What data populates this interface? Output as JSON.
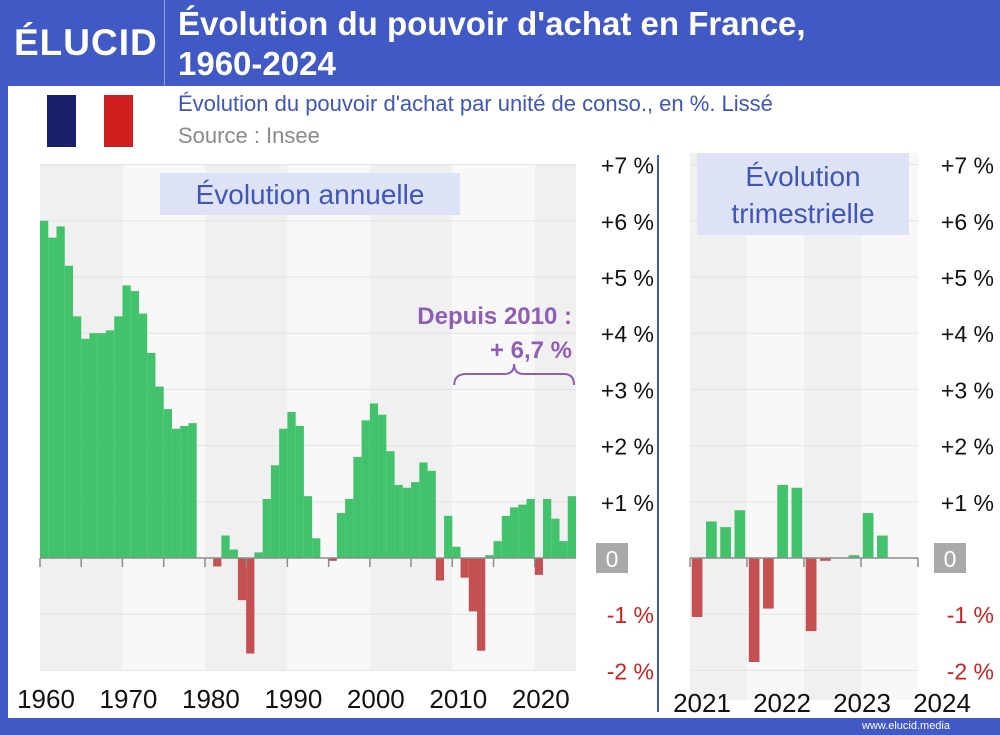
{
  "header": {
    "logo": "ÉLUCID",
    "title_line1": "Évolution du pouvoir d'achat en France,",
    "title_line2": "1960-2024"
  },
  "subtitle": "Évolution du pouvoir d'achat par unité de conso., en %. Lissé",
  "source": "Source : Insee",
  "footer": {
    "site": "www.elucid.media"
  },
  "colors": {
    "positive": "#41c26b",
    "negative": "#c55052",
    "accent": "#3f56b8",
    "annotation": "#8e5fb5",
    "flag_blue": "#19216b",
    "flag_red": "#d01f1f"
  },
  "chart_data": [
    {
      "type": "bar",
      "title": "Évolution annuelle",
      "x": [
        1960,
        1961,
        1962,
        1963,
        1964,
        1965,
        1966,
        1967,
        1968,
        1969,
        1970,
        1971,
        1972,
        1973,
        1974,
        1975,
        1976,
        1977,
        1978,
        1979,
        1980,
        1981,
        1982,
        1983,
        1984,
        1985,
        1986,
        1987,
        1988,
        1989,
        1990,
        1991,
        1992,
        1993,
        1994,
        1995,
        1996,
        1997,
        1998,
        1999,
        2000,
        2001,
        2002,
        2003,
        2004,
        2005,
        2006,
        2007,
        2008,
        2009,
        2010,
        2011,
        2012,
        2013,
        2014,
        2015,
        2016,
        2017,
        2018,
        2019,
        2020,
        2021,
        2022,
        2023,
        2024
      ],
      "values": [
        6.0,
        5.7,
        5.9,
        5.2,
        4.3,
        3.9,
        4.0,
        4.0,
        4.05,
        4.3,
        4.85,
        4.75,
        4.35,
        3.65,
        3.05,
        2.65,
        2.3,
        2.35,
        2.4,
        0,
        0,
        -0.15,
        0.4,
        0.15,
        -0.75,
        -1.7,
        0.1,
        1.05,
        1.65,
        2.3,
        2.6,
        2.35,
        1.1,
        0.35,
        0,
        -0.05,
        0.8,
        1.05,
        1.8,
        2.45,
        2.75,
        2.55,
        1.9,
        1.3,
        1.25,
        1.35,
        1.7,
        1.55,
        -0.4,
        0.75,
        0.2,
        -0.35,
        -0.95,
        -1.65,
        0.05,
        0.3,
        0.75,
        0.9,
        0.95,
        1.05,
        -0.3,
        1.05,
        0.7,
        0.3,
        1.1
      ],
      "xticks": [
        "1960",
        "1970",
        "1980",
        "1990",
        "2000",
        "2010",
        "2020"
      ],
      "yticks": [
        "+7 %",
        "+6 %",
        "+5 %",
        "+4 %",
        "+3 %",
        "+2 %",
        "+1 %",
        "0",
        "-1 %",
        "-2 %"
      ],
      "ylim": [
        -2,
        7
      ],
      "annotation_line1": "Depuis 2010 :",
      "annotation_line2": "+ 6,7 %"
    },
    {
      "type": "bar",
      "title_line1": "Évolution",
      "title_line2": "trimestrielle",
      "x": [
        "2021-T1",
        "2021-T2",
        "2021-T3",
        "2021-T4",
        "2022-T1",
        "2022-T2",
        "2022-T3",
        "2022-T4",
        "2023-T1",
        "2023-T2",
        "2023-T3",
        "2023-T4",
        "2024-T1",
        "2024-T2",
        "2024-T3",
        "2024-T4"
      ],
      "values": [
        -1.05,
        0.65,
        0.55,
        0.85,
        -1.85,
        -0.9,
        1.3,
        1.25,
        -1.3,
        -0.05,
        0,
        0.05,
        0.8,
        0.4,
        0,
        0
      ],
      "xticks": [
        "2021",
        "2022",
        "2023",
        "2024"
      ],
      "yticks": [
        "+7 %",
        "+6 %",
        "+5 %",
        "+4 %",
        "+3 %",
        "+2 %",
        "+1 %",
        "0",
        "-1 %",
        "-2 %"
      ],
      "ylim": [
        -2,
        7
      ]
    }
  ]
}
